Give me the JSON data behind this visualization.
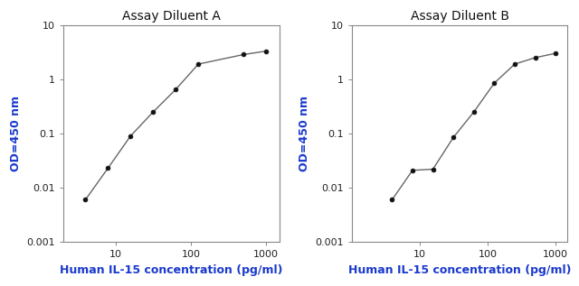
{
  "title_A": "Assay Diluent A",
  "title_B": "Assay Diluent B",
  "xlabel": "Human IL-15 concentration (pg/ml)",
  "ylabel": "OD=450 nm",
  "x_A_pts": [
    3.9,
    7.8,
    15.6,
    31.25,
    62.5,
    125,
    500,
    1000
  ],
  "y_A_pts": [
    0.006,
    0.023,
    0.09,
    0.25,
    0.65,
    1.9,
    2.85,
    3.3
  ],
  "x_B_pts": [
    3.9,
    7.8,
    15.6,
    31.25,
    62.5,
    125,
    250,
    500,
    1000
  ],
  "y_B_pts": [
    0.006,
    0.021,
    0.022,
    0.085,
    0.25,
    0.85,
    1.9,
    2.5,
    3.0
  ],
  "xlim_A": [
    2,
    1500
  ],
  "xlim_B": [
    1,
    1500
  ],
  "ylim": [
    0.001,
    10
  ],
  "xticks": [
    10,
    100,
    1000
  ],
  "yticks": [
    0.001,
    0.01,
    0.1,
    1,
    10
  ],
  "line_color": "#666666",
  "marker_color": "#111111",
  "title_color": "#111111",
  "label_color": "#1a3acc",
  "label_color_x": "#1a3acc",
  "background_color": "#ffffff",
  "title_fontsize": 10,
  "label_fontsize": 9,
  "tick_label_fontsize": 8
}
